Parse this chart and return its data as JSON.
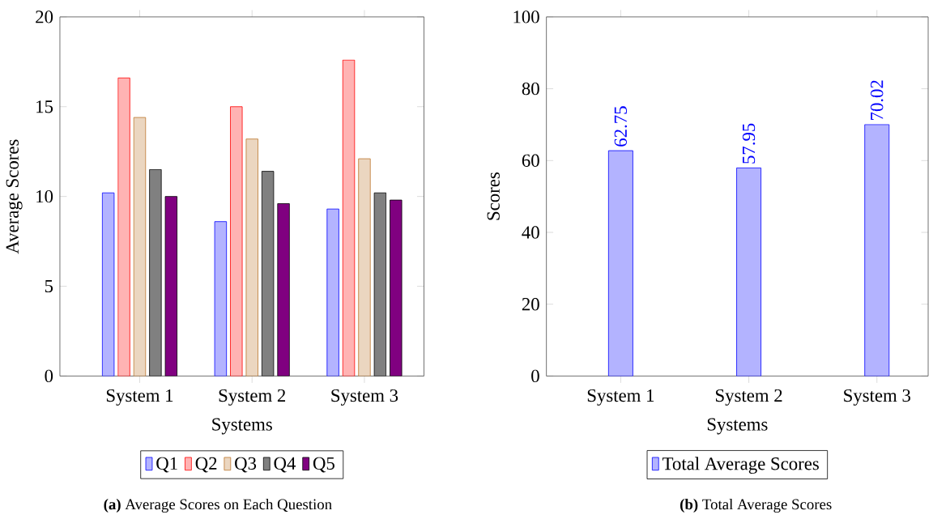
{
  "chart_data": [
    {
      "type": "bar",
      "title": "**(a)** Average Scores on Each Question",
      "xlabel": "Systems",
      "ylabel": "Average Scores",
      "categories": [
        "System 1",
        "System 2",
        "System 3"
      ],
      "ylim": [
        0,
        20
      ],
      "yticks": [
        0,
        5,
        10,
        15,
        20
      ],
      "legend": "bottom",
      "series": [
        {
          "name": "Q1",
          "color": "#b3b3ff",
          "values": [
            10.2,
            8.6,
            9.3
          ]
        },
        {
          "name": "Q2",
          "color": "#ffb3b3",
          "values": [
            16.6,
            15.0,
            17.6
          ]
        },
        {
          "name": "Q3",
          "color": "#ebd6c0",
          "values": [
            14.4,
            13.2,
            12.1
          ]
        },
        {
          "name": "Q4",
          "color": "#808080",
          "values": [
            11.5,
            11.4,
            10.2
          ]
        },
        {
          "name": "Q5",
          "color": "#800080",
          "values": [
            10.0,
            9.6,
            9.8
          ]
        }
      ]
    },
    {
      "type": "bar",
      "title": "**(b)** Total Average Scores",
      "xlabel": "Systems",
      "ylabel": "Scores",
      "categories": [
        "System 1",
        "System 2",
        "System 3"
      ],
      "ylim": [
        0,
        100
      ],
      "yticks": [
        0,
        20,
        40,
        60,
        80,
        100
      ],
      "legend": "bottom",
      "data_labels": true,
      "series": [
        {
          "name": "Total Average Scores",
          "color": "#b3b3ff",
          "values": [
            62.75,
            57.95,
            70.02
          ]
        }
      ]
    }
  ]
}
